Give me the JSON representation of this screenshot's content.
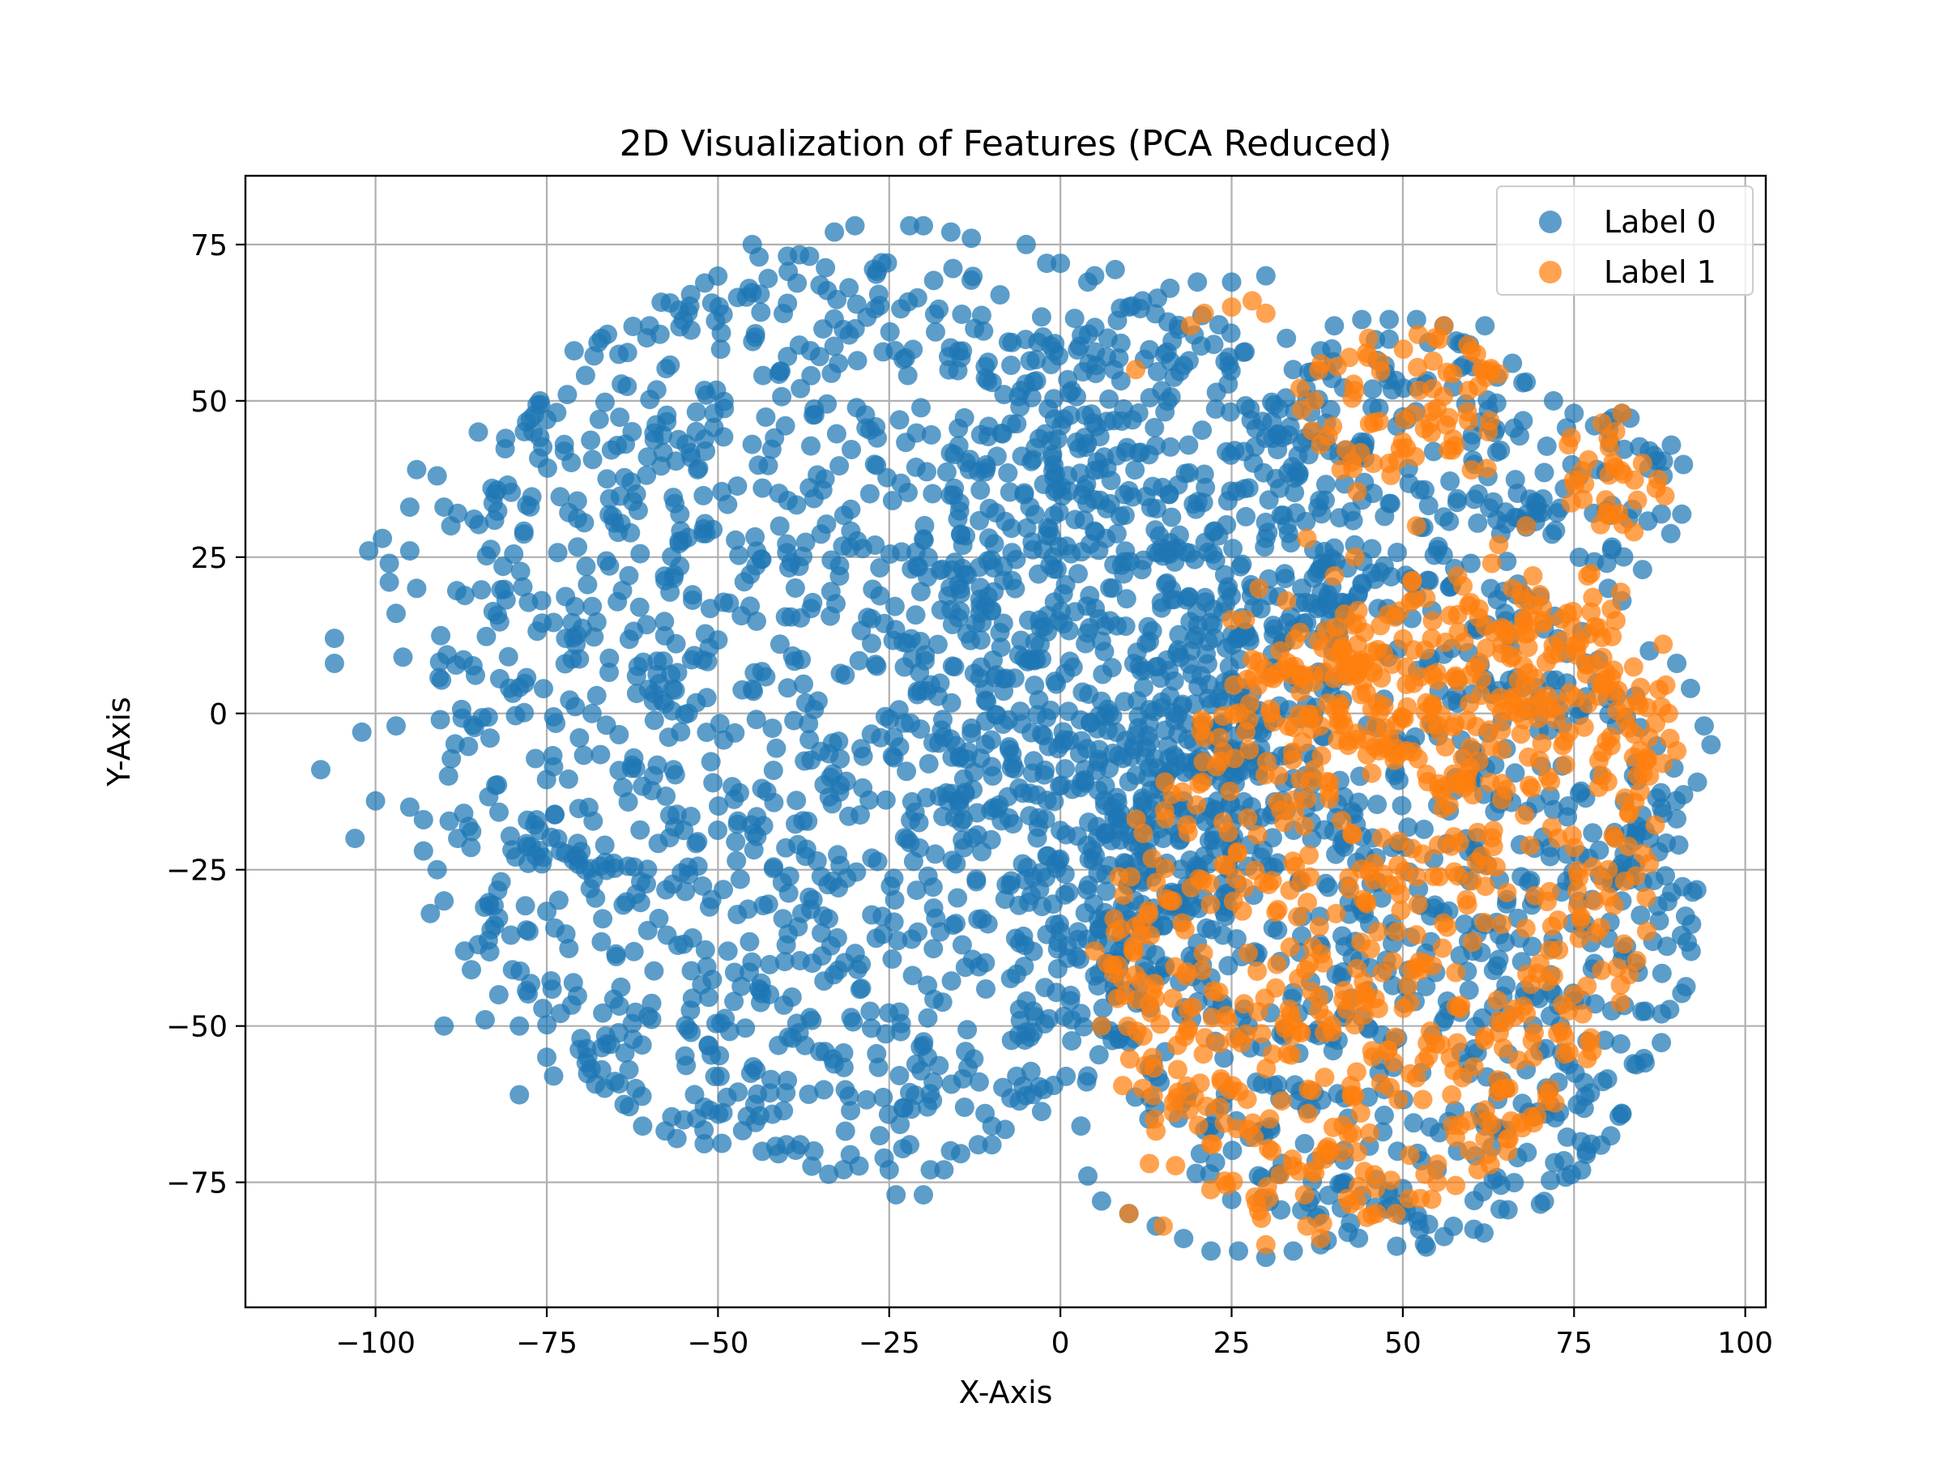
{
  "chart_data": {
    "type": "scatter",
    "title": "2D Visualization of Features (PCA Reduced)",
    "xlabel": "X-Axis",
    "ylabel": "Y-Axis",
    "xlim": [
      -119,
      103
    ],
    "ylim": [
      -95,
      86
    ],
    "xticks": [
      -100,
      -75,
      -50,
      -25,
      0,
      25,
      50,
      75,
      100
    ],
    "yticks": [
      -75,
      -50,
      -25,
      0,
      25,
      50,
      75
    ],
    "xtick_labels": [
      "−100",
      "−75",
      "−50",
      "−25",
      "0",
      "25",
      "50",
      "75",
      "100"
    ],
    "ytick_labels": [
      "−75",
      "−50",
      "−25",
      "0",
      "25",
      "50",
      "75"
    ],
    "grid": true,
    "legend_position": "top-right",
    "series": [
      {
        "name": "Label 0",
        "color": "#1f77b4",
        "regions": [
          {
            "cx": -32,
            "cy": 0,
            "rx": 60,
            "ry": 74
          },
          {
            "cx": 10,
            "cy": 15,
            "rx": 32,
            "ry": 52
          },
          {
            "cx": 50,
            "cy": 40,
            "rx": 22,
            "ry": 22
          },
          {
            "cx": 80,
            "cy": 36,
            "rx": 12,
            "ry": 12
          },
          {
            "cx": 48,
            "cy": -30,
            "rx": 45,
            "ry": 56
          }
        ],
        "points": [
          [
            -108,
            -9
          ],
          [
            -106,
            8
          ],
          [
            -106,
            12
          ],
          [
            -103,
            -20
          ],
          [
            -102,
            -3
          ],
          [
            -101,
            26
          ],
          [
            -100,
            -14
          ],
          [
            -99,
            28
          ],
          [
            -98,
            21
          ],
          [
            -98,
            24
          ],
          [
            -97,
            16
          ],
          [
            -97,
            -2
          ],
          [
            -96,
            9
          ],
          [
            -95,
            -15
          ],
          [
            -95,
            33
          ],
          [
            -95,
            26
          ],
          [
            -94,
            39
          ],
          [
            -94,
            20
          ],
          [
            -93,
            -22
          ],
          [
            -93,
            -17
          ],
          [
            -92,
            -32
          ],
          [
            -91,
            -25
          ],
          [
            -91,
            38
          ],
          [
            -90,
            33
          ],
          [
            -90,
            -50
          ],
          [
            -90,
            -30
          ],
          [
            -89,
            30
          ],
          [
            -88,
            32
          ],
          [
            -88,
            -20
          ],
          [
            -87,
            -38
          ],
          [
            -86,
            -41
          ],
          [
            -85,
            -37
          ],
          [
            -85,
            45
          ],
          [
            -84,
            -49
          ],
          [
            -83,
            36
          ],
          [
            -82,
            -45
          ],
          [
            -81,
            44
          ],
          [
            -80,
            -41
          ],
          [
            -79,
            -61
          ],
          [
            -79,
            -50
          ],
          [
            -77,
            45
          ],
          [
            -76,
            50
          ],
          [
            -75,
            47
          ],
          [
            -75,
            -55
          ],
          [
            -74,
            -58
          ],
          [
            -73,
            -48
          ],
          [
            -72,
            51
          ],
          [
            -71,
            58
          ],
          [
            -70,
            -52
          ],
          [
            -69,
            -55
          ],
          [
            -67,
            -57
          ],
          [
            -67,
            60
          ],
          [
            -63,
            -57
          ],
          [
            -62,
            -60
          ],
          [
            -61,
            -66
          ],
          [
            -60,
            62
          ],
          [
            -56,
            -68
          ],
          [
            -55,
            -65
          ],
          [
            -54,
            67
          ],
          [
            -52,
            -63
          ],
          [
            -45,
            75
          ],
          [
            -44,
            73
          ],
          [
            -40,
            -69
          ],
          [
            -38,
            -69
          ],
          [
            -36,
            -70
          ],
          [
            -33,
            77
          ],
          [
            -30,
            78
          ],
          [
            -25,
            -73
          ],
          [
            -24,
            -77
          ],
          [
            -22,
            -69
          ],
          [
            -22,
            78
          ],
          [
            -20,
            78
          ],
          [
            -20,
            -77
          ],
          [
            -19,
            -73
          ],
          [
            -17,
            -73
          ],
          [
            -16,
            77
          ],
          [
            -14,
            -63
          ],
          [
            -13,
            76
          ],
          [
            -12,
            -69
          ],
          [
            -11,
            -64
          ],
          [
            -10,
            -69
          ],
          [
            -10,
            -66
          ],
          [
            -6,
            -62
          ],
          [
            -5,
            75
          ],
          [
            -2,
            72
          ],
          [
            0,
            72
          ],
          [
            3,
            -48
          ],
          [
            4,
            69
          ],
          [
            5,
            70
          ],
          [
            8,
            71
          ],
          [
            10,
            65
          ],
          [
            12,
            66
          ],
          [
            16,
            68
          ],
          [
            20,
            69
          ],
          [
            25,
            69
          ],
          [
            30,
            70
          ],
          [
            33,
            60
          ],
          [
            34,
            55
          ],
          [
            38,
            58
          ],
          [
            40,
            62
          ],
          [
            44,
            63
          ],
          [
            48,
            63
          ],
          [
            52,
            63
          ],
          [
            56,
            62
          ],
          [
            62,
            62
          ],
          [
            66,
            56
          ],
          [
            68,
            53
          ],
          [
            72,
            50
          ],
          [
            75,
            48
          ],
          [
            78,
            46
          ],
          [
            82,
            48
          ],
          [
            86,
            42
          ],
          [
            88,
            38
          ],
          [
            85,
            23
          ],
          [
            82,
            18
          ],
          [
            80,
            20
          ],
          [
            86,
            10
          ],
          [
            90,
            8
          ],
          [
            92,
            4
          ],
          [
            94,
            -2
          ],
          [
            95,
            -5
          ],
          [
            93,
            -11
          ],
          [
            91,
            -13
          ],
          [
            88,
            -16
          ],
          [
            86,
            -20
          ],
          [
            84,
            -24
          ],
          [
            85,
            -27
          ],
          [
            82,
            -30
          ],
          [
            80,
            -36
          ],
          [
            78,
            -40
          ],
          [
            75,
            -46
          ],
          [
            73,
            -50
          ],
          [
            70,
            -54
          ],
          [
            68,
            -57
          ],
          [
            65,
            -60
          ],
          [
            62,
            -66
          ],
          [
            58,
            -70
          ],
          [
            55,
            -73
          ],
          [
            50,
            -76
          ],
          [
            46,
            -79
          ],
          [
            42,
            -83
          ],
          [
            38,
            -85
          ],
          [
            34,
            -86
          ],
          [
            30,
            -87
          ],
          [
            26,
            -86
          ],
          [
            22,
            -86
          ],
          [
            18,
            -84
          ],
          [
            14,
            -82
          ],
          [
            10,
            -80
          ],
          [
            6,
            -78
          ],
          [
            4,
            -74
          ],
          [
            3,
            -66
          ],
          [
            4,
            -58
          ],
          [
            6,
            -50
          ],
          [
            5,
            -42
          ],
          [
            7,
            -37
          ],
          [
            10,
            -33
          ],
          [
            12,
            -27
          ],
          [
            15,
            -20
          ],
          [
            18,
            -14
          ],
          [
            20,
            -8
          ],
          [
            22,
            -3
          ],
          [
            24,
            5
          ],
          [
            26,
            12
          ],
          [
            28,
            20
          ],
          [
            30,
            28
          ],
          [
            32,
            36
          ],
          [
            31,
            44
          ]
        ]
      },
      {
        "name": "Label 1",
        "color": "#ff7f0e",
        "regions": [
          {
            "cx": 47,
            "cy": -30,
            "rx": 40,
            "ry": 52,
            "skew": 1
          },
          {
            "cx": 60,
            "cy": 5,
            "rx": 32,
            "ry": 14
          },
          {
            "cx": 50,
            "cy": 48,
            "rx": 16,
            "ry": 14
          },
          {
            "cx": 80,
            "cy": 38,
            "rx": 9,
            "ry": 10
          },
          {
            "cx": 78,
            "cy": 18,
            "rx": 4,
            "ry": 6
          }
        ],
        "points": [
          [
            5,
            -38
          ],
          [
            6,
            -50
          ],
          [
            8,
            -35
          ],
          [
            10,
            -80
          ],
          [
            11,
            55
          ],
          [
            12,
            -60
          ],
          [
            13,
            -72
          ],
          [
            15,
            -82
          ],
          [
            16,
            -30
          ],
          [
            19,
            62
          ],
          [
            21,
            64
          ],
          [
            25,
            65
          ],
          [
            25,
            15
          ],
          [
            27,
            15
          ],
          [
            28,
            66
          ],
          [
            29,
            20
          ],
          [
            30,
            64
          ],
          [
            30,
            -85
          ],
          [
            33,
            18
          ],
          [
            35,
            52
          ],
          [
            36,
            28
          ],
          [
            36,
            -82
          ],
          [
            38,
            43
          ],
          [
            38,
            -84
          ],
          [
            40,
            22
          ],
          [
            43,
            25
          ],
          [
            45,
            60
          ],
          [
            46,
            -76
          ],
          [
            48,
            40
          ],
          [
            49,
            -80
          ],
          [
            52,
            30
          ],
          [
            55,
            -75
          ],
          [
            56,
            62
          ],
          [
            58,
            22
          ],
          [
            60,
            58
          ],
          [
            61,
            -73
          ],
          [
            62,
            -68
          ],
          [
            63,
            24
          ],
          [
            64,
            27
          ],
          [
            65,
            -60
          ],
          [
            66,
            20
          ],
          [
            68,
            30
          ],
          [
            69,
            22
          ],
          [
            70,
            19
          ],
          [
            70,
            -40
          ],
          [
            72,
            -42
          ],
          [
            74,
            16
          ],
          [
            75,
            -45
          ],
          [
            76,
            -33
          ],
          [
            77,
            22
          ],
          [
            78,
            -30
          ],
          [
            80,
            44
          ],
          [
            80,
            -25
          ],
          [
            81,
            -20
          ],
          [
            82,
            48
          ],
          [
            83,
            -16
          ],
          [
            84,
            -26
          ],
          [
            85,
            40
          ],
          [
            86,
            -24
          ],
          [
            86,
            -10
          ],
          [
            87,
            36
          ],
          [
            88,
            -8
          ],
          [
            89,
            -4
          ],
          [
            90,
            -6
          ]
        ]
      }
    ]
  }
}
